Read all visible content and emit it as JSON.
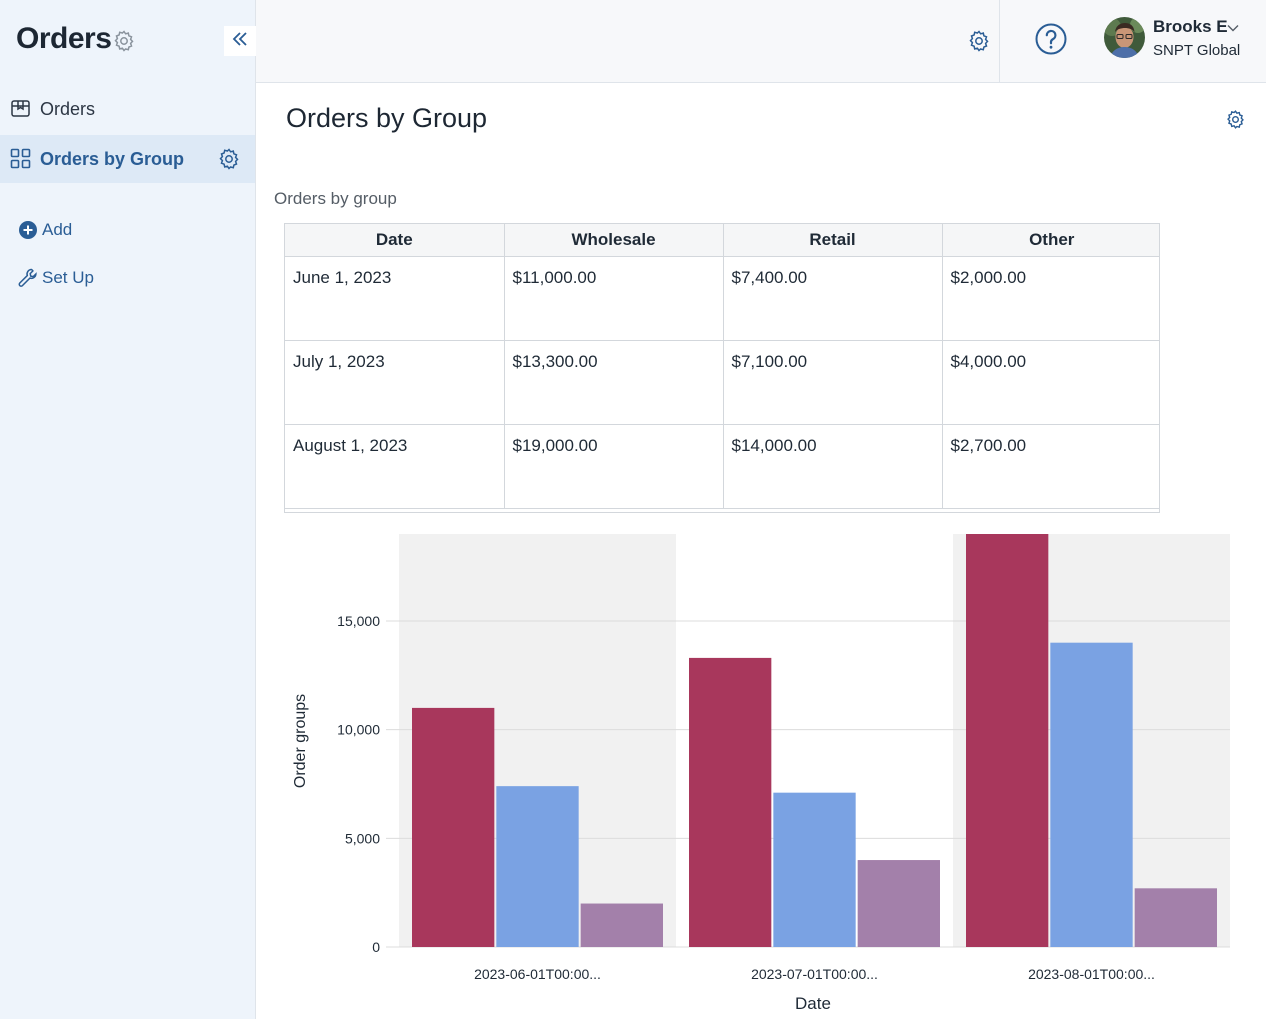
{
  "sidebar": {
    "app_title": "Orders",
    "items": [
      {
        "label": "Orders",
        "icon": "box-icon",
        "active": false
      },
      {
        "label": "Orders by Group",
        "icon": "grid-icon",
        "active": true
      }
    ],
    "actions": [
      {
        "label": "Add",
        "icon": "plus-circle-icon"
      },
      {
        "label": "Set Up",
        "icon": "wrench-icon"
      }
    ]
  },
  "topbar": {
    "user": {
      "name": "Brooks E",
      "org": "SNPT Global"
    }
  },
  "page": {
    "title": "Orders by Group",
    "section_label": "Orders by group"
  },
  "table": {
    "columns": [
      "Date",
      "Wholesale",
      "Retail",
      "Other"
    ],
    "rows": [
      [
        "June 1, 2023",
        "$11,000.00",
        "$7,400.00",
        "$2,000.00"
      ],
      [
        "July 1, 2023",
        "$13,300.00",
        "$7,100.00",
        "$4,000.00"
      ],
      [
        "August 1, 2023",
        "$19,000.00",
        "$14,000.00",
        "$2,700.00"
      ]
    ]
  },
  "colors": {
    "accent": "#2a5d95",
    "wholesale": "#a8375c",
    "retail": "#7aa2e3",
    "other": "#a380aa"
  },
  "chart_data": {
    "type": "bar",
    "categories": [
      "2023-06-01T00:00...",
      "2023-07-01T00:00...",
      "2023-08-01T00:00..."
    ],
    "series": [
      {
        "values": [
          11000,
          13300,
          19000
        ],
        "color": "#a8375c"
      },
      {
        "values": [
          7400,
          7100,
          14000
        ],
        "color": "#7aa2e3"
      },
      {
        "values": [
          2000,
          4000,
          2700
        ],
        "color": "#a380aa"
      }
    ],
    "xlabel": "Date",
    "ylabel": "Order groups",
    "ylim": [
      0,
      19000
    ],
    "yticks": [
      0,
      5000,
      10000,
      15000
    ],
    "ytick_labels": [
      "0",
      "5,000",
      "10,000",
      "15,000"
    ],
    "grid": true
  }
}
